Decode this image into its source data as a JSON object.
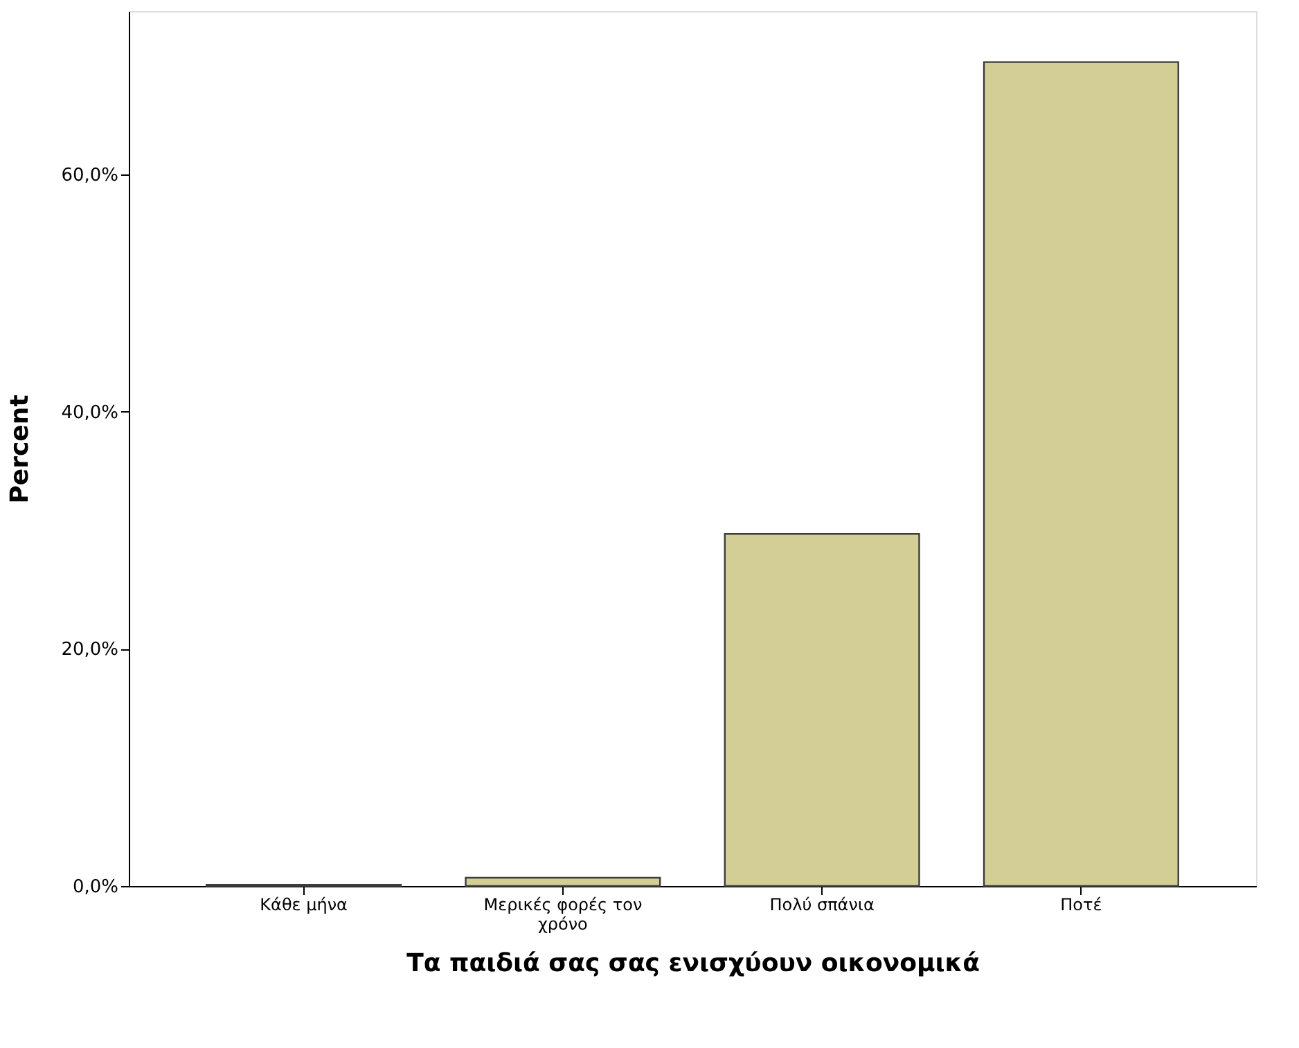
{
  "chart_data": {
    "type": "bar",
    "xlabel": "Τα παιδιά σας σας ενισχύουν οικονομικά",
    "ylabel": "Percent",
    "categories": [
      "Κάθε μήνα",
      "Μερικές φορές τον χρόνο",
      "Πολύ σπάνια",
      "Ποτέ"
    ],
    "values": [
      0.1,
      0.7,
      29.7,
      69.5
    ],
    "color": "#d3cd96",
    "ylim": [
      0,
      73.8
    ],
    "yticks": [
      {
        "value": 0,
        "label": "0,0%"
      },
      {
        "value": 20,
        "label": "20,0%"
      },
      {
        "value": 40,
        "label": "40,0%"
      },
      {
        "value": 60,
        "label": "60,0%"
      }
    ],
    "grid": false
  }
}
